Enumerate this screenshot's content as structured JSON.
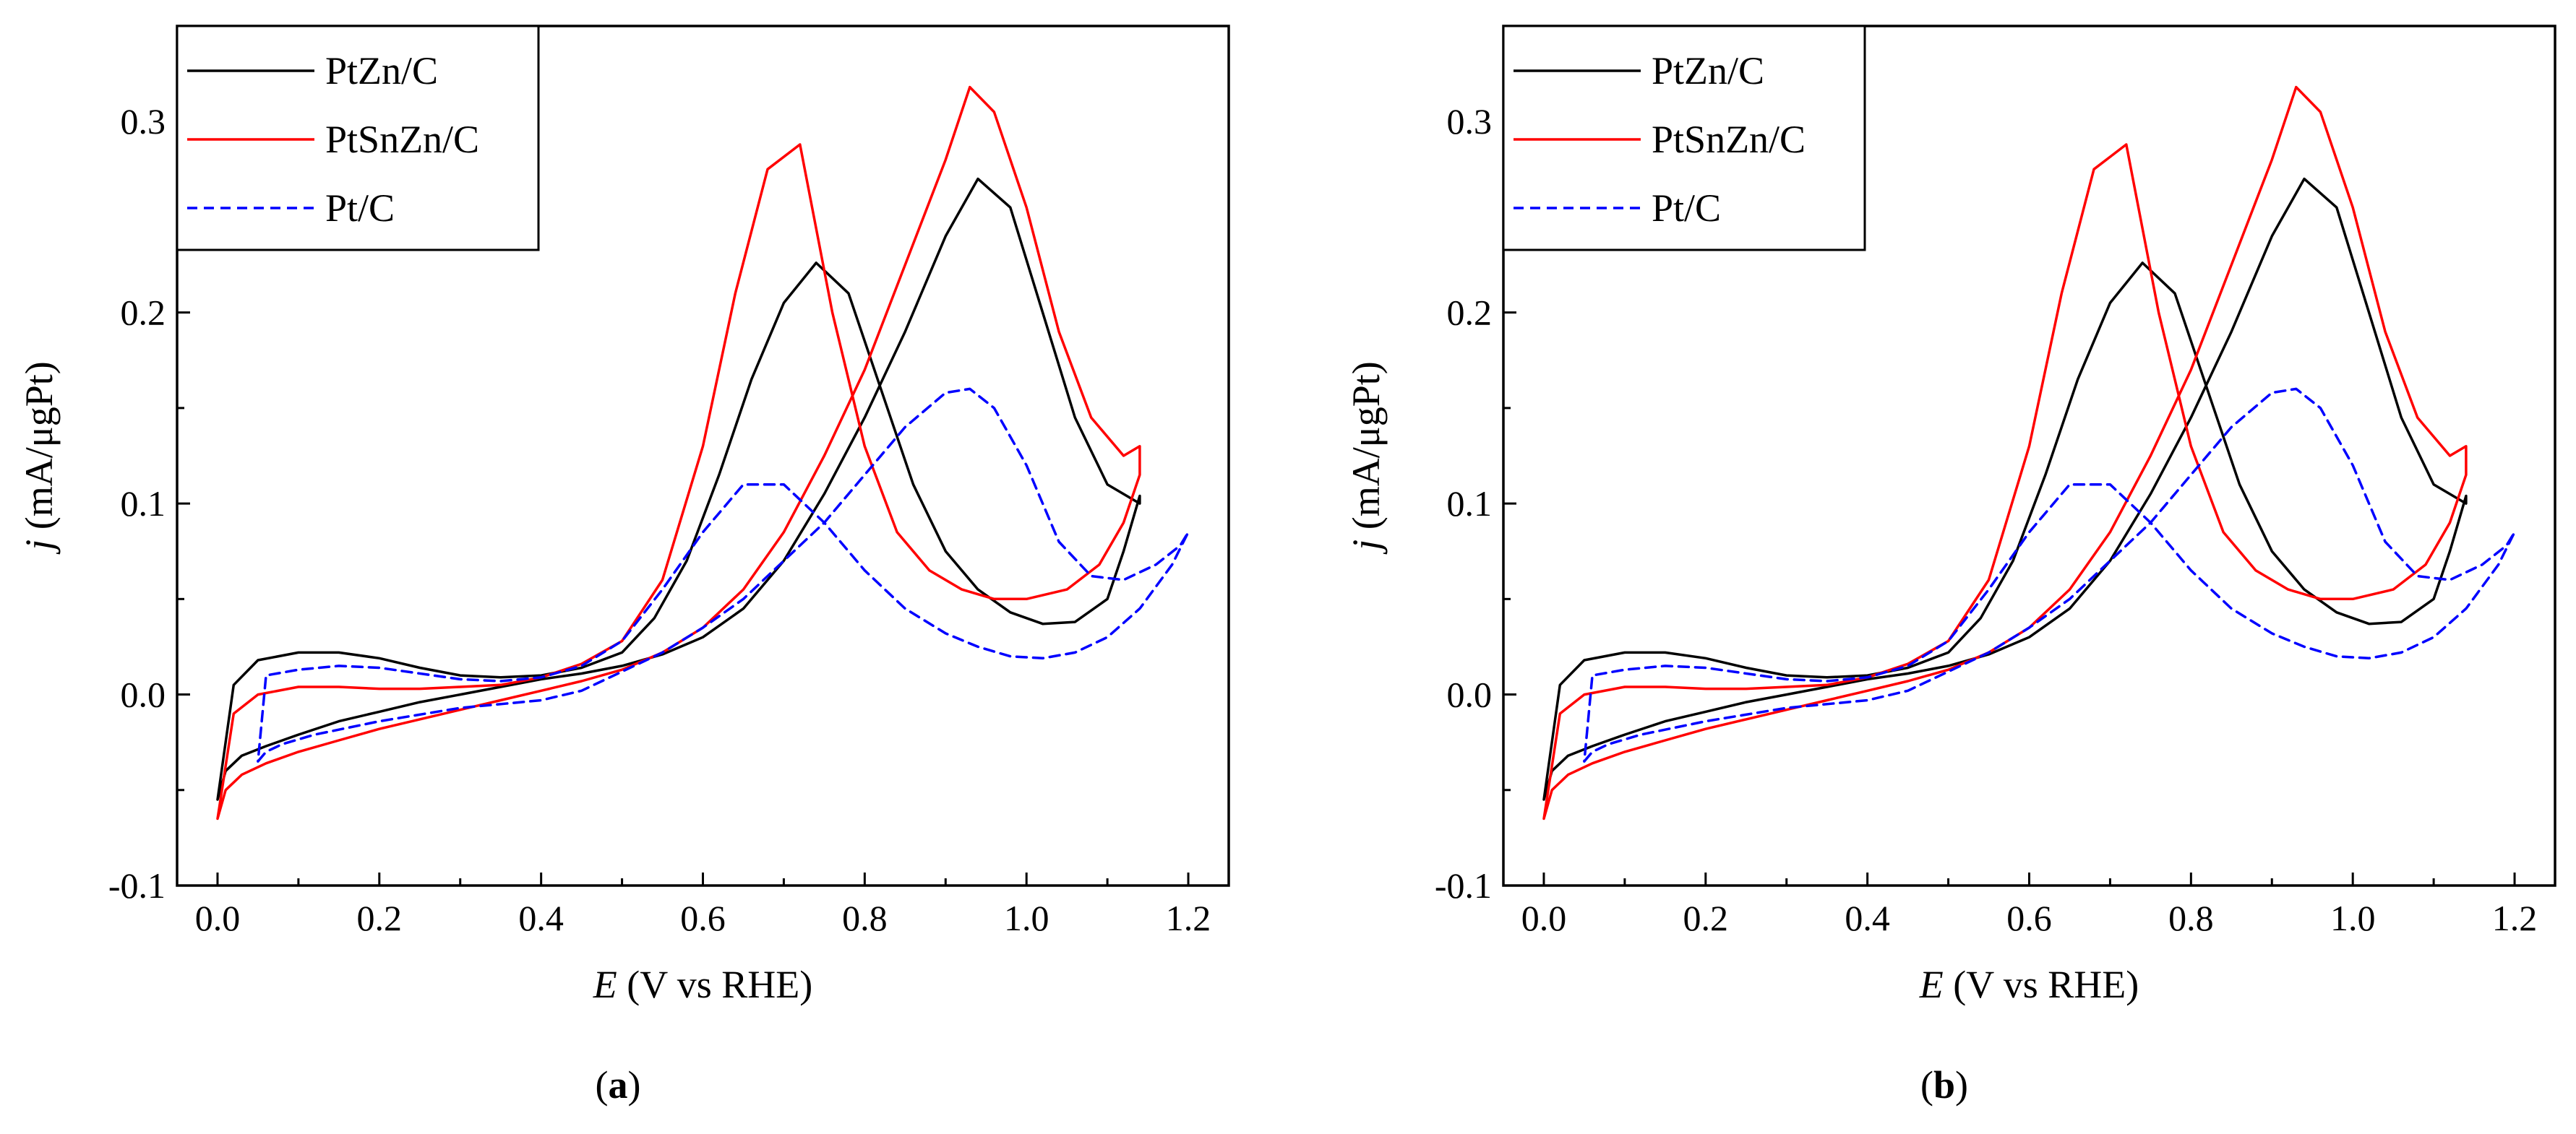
{
  "panels": [
    {
      "caption_open": "(",
      "caption_letter": "a",
      "caption_close": ")"
    },
    {
      "caption_open": "(",
      "caption_letter": "b",
      "caption_close": ")"
    }
  ],
  "chart_data": [
    {
      "type": "line",
      "panel": "a",
      "xlabel_var": "E",
      "xlabel_rest": " (V vs RHE)",
      "ylabel_var": "j",
      "ylabel_rest": " (mA/μgPt)",
      "xlim": [
        -0.05,
        1.25
      ],
      "ylim": [
        -0.1,
        0.35
      ],
      "xticks": [
        0.0,
        0.2,
        0.4,
        0.6,
        0.8,
        1.0,
        1.2
      ],
      "xtick_labels": [
        "0.0",
        "0.2",
        "0.4",
        "0.6",
        "0.8",
        "1.0",
        "1.2"
      ],
      "yticks": [
        -0.1,
        0.0,
        0.1,
        0.2,
        0.3
      ],
      "ytick_labels": [
        "-0.1",
        "0.0",
        "0.1",
        "0.2",
        "0.3"
      ],
      "legend_position": "top-left",
      "series": [
        {
          "name": "PtZn/C",
          "color": "#000000",
          "dash": "solid",
          "x": [
            0.0,
            0.01,
            0.03,
            0.06,
            0.1,
            0.15,
            0.2,
            0.25,
            0.3,
            0.35,
            0.4,
            0.45,
            0.5,
            0.55,
            0.6,
            0.65,
            0.7,
            0.75,
            0.8,
            0.85,
            0.9,
            0.94,
            0.98,
            1.02,
            1.06,
            1.1,
            1.14,
            1.14,
            1.12,
            1.1,
            1.06,
            1.02,
            0.98,
            0.94,
            0.9,
            0.86,
            0.82,
            0.78,
            0.74,
            0.7,
            0.66,
            0.62,
            0.58,
            0.54,
            0.5,
            0.45,
            0.4,
            0.35,
            0.3,
            0.25,
            0.2,
            0.15,
            0.1,
            0.05,
            0.02,
            0.0
          ],
          "y": [
            -0.055,
            -0.04,
            -0.032,
            -0.027,
            -0.021,
            -0.014,
            -0.009,
            -0.004,
            0.0,
            0.004,
            0.008,
            0.011,
            0.015,
            0.021,
            0.03,
            0.045,
            0.07,
            0.105,
            0.145,
            0.19,
            0.24,
            0.27,
            0.255,
            0.2,
            0.145,
            0.11,
            0.1,
            0.104,
            0.075,
            0.05,
            0.038,
            0.037,
            0.043,
            0.055,
            0.075,
            0.11,
            0.16,
            0.21,
            0.226,
            0.205,
            0.165,
            0.115,
            0.07,
            0.04,
            0.022,
            0.014,
            0.01,
            0.009,
            0.01,
            0.014,
            0.019,
            0.022,
            0.022,
            0.018,
            0.005,
            -0.055
          ]
        },
        {
          "name": "PtSnZn/C",
          "color": "#ff0000",
          "dash": "solid",
          "x": [
            0.0,
            0.01,
            0.03,
            0.06,
            0.1,
            0.15,
            0.2,
            0.25,
            0.3,
            0.35,
            0.4,
            0.45,
            0.5,
            0.55,
            0.6,
            0.65,
            0.7,
            0.75,
            0.8,
            0.85,
            0.9,
            0.93,
            0.96,
            1.0,
            1.04,
            1.08,
            1.12,
            1.14,
            1.14,
            1.12,
            1.09,
            1.05,
            1.0,
            0.96,
            0.92,
            0.88,
            0.84,
            0.8,
            0.76,
            0.72,
            0.68,
            0.64,
            0.6,
            0.55,
            0.5,
            0.45,
            0.4,
            0.35,
            0.3,
            0.25,
            0.2,
            0.15,
            0.1,
            0.05,
            0.02,
            0.0
          ],
          "y": [
            -0.065,
            -0.05,
            -0.042,
            -0.036,
            -0.03,
            -0.024,
            -0.018,
            -0.013,
            -0.008,
            -0.003,
            0.002,
            0.007,
            0.013,
            0.022,
            0.035,
            0.055,
            0.085,
            0.125,
            0.17,
            0.225,
            0.28,
            0.318,
            0.305,
            0.255,
            0.19,
            0.145,
            0.125,
            0.13,
            0.115,
            0.09,
            0.068,
            0.055,
            0.05,
            0.05,
            0.055,
            0.065,
            0.085,
            0.13,
            0.2,
            0.288,
            0.275,
            0.21,
            0.13,
            0.06,
            0.028,
            0.016,
            0.009,
            0.005,
            0.004,
            0.003,
            0.003,
            0.004,
            0.004,
            0.0,
            -0.01,
            -0.065
          ]
        },
        {
          "name": "Pt/C",
          "color": "#0000ff",
          "dash": "dashed",
          "x": [
            0.05,
            0.06,
            0.08,
            0.12,
            0.2,
            0.3,
            0.4,
            0.45,
            0.5,
            0.55,
            0.6,
            0.65,
            0.7,
            0.75,
            0.8,
            0.85,
            0.9,
            0.93,
            0.96,
            1.0,
            1.04,
            1.08,
            1.12,
            1.16,
            1.19,
            1.2,
            1.18,
            1.14,
            1.1,
            1.06,
            1.02,
            0.98,
            0.94,
            0.9,
            0.85,
            0.8,
            0.75,
            0.7,
            0.65,
            0.6,
            0.55,
            0.5,
            0.45,
            0.4,
            0.35,
            0.3,
            0.2,
            0.15,
            0.1,
            0.06,
            0.05
          ],
          "y": [
            -0.035,
            -0.03,
            -0.026,
            -0.021,
            -0.014,
            -0.007,
            -0.003,
            0.002,
            0.012,
            0.022,
            0.035,
            0.05,
            0.07,
            0.09,
            0.115,
            0.14,
            0.158,
            0.16,
            0.15,
            0.12,
            0.08,
            0.062,
            0.06,
            0.068,
            0.078,
            0.085,
            0.068,
            0.045,
            0.03,
            0.022,
            0.019,
            0.02,
            0.025,
            0.032,
            0.045,
            0.065,
            0.09,
            0.11,
            0.11,
            0.085,
            0.055,
            0.028,
            0.015,
            0.009,
            0.007,
            0.008,
            0.014,
            0.015,
            0.013,
            0.01,
            -0.035
          ]
        }
      ]
    },
    {
      "type": "line",
      "panel": "b",
      "xlabel_var": "E",
      "xlabel_rest": " (V vs RHE)",
      "ylabel_var": "j",
      "ylabel_rest": " (mA/μgPt)",
      "xlim": [
        -0.05,
        1.25
      ],
      "ylim": [
        -0.1,
        0.35
      ],
      "xticks": [
        0.0,
        0.2,
        0.4,
        0.6,
        0.8,
        1.0,
        1.2
      ],
      "xtick_labels": [
        "0.0",
        "0.2",
        "0.4",
        "0.6",
        "0.8",
        "1.0",
        "1.2"
      ],
      "yticks": [
        -0.1,
        0.0,
        0.1,
        0.2,
        0.3
      ],
      "ytick_labels": [
        "-0.1",
        "0.0",
        "0.1",
        "0.2",
        "0.3"
      ],
      "legend_position": "top-left",
      "series": [
        {
          "name": "PtZn/C",
          "color": "#000000",
          "dash": "solid",
          "x": [
            0.0,
            0.01,
            0.03,
            0.06,
            0.1,
            0.15,
            0.2,
            0.25,
            0.3,
            0.35,
            0.4,
            0.45,
            0.5,
            0.55,
            0.6,
            0.65,
            0.7,
            0.75,
            0.8,
            0.85,
            0.9,
            0.94,
            0.98,
            1.02,
            1.06,
            1.1,
            1.14,
            1.14,
            1.12,
            1.1,
            1.06,
            1.02,
            0.98,
            0.94,
            0.9,
            0.86,
            0.82,
            0.78,
            0.74,
            0.7,
            0.66,
            0.62,
            0.58,
            0.54,
            0.5,
            0.45,
            0.4,
            0.35,
            0.3,
            0.25,
            0.2,
            0.15,
            0.1,
            0.05,
            0.02,
            0.0
          ],
          "y": [
            -0.055,
            -0.04,
            -0.032,
            -0.027,
            -0.021,
            -0.014,
            -0.009,
            -0.004,
            0.0,
            0.004,
            0.008,
            0.011,
            0.015,
            0.021,
            0.03,
            0.045,
            0.07,
            0.105,
            0.145,
            0.19,
            0.24,
            0.27,
            0.255,
            0.2,
            0.145,
            0.11,
            0.1,
            0.104,
            0.075,
            0.05,
            0.038,
            0.037,
            0.043,
            0.055,
            0.075,
            0.11,
            0.16,
            0.21,
            0.226,
            0.205,
            0.165,
            0.115,
            0.07,
            0.04,
            0.022,
            0.014,
            0.01,
            0.009,
            0.01,
            0.014,
            0.019,
            0.022,
            0.022,
            0.018,
            0.005,
            -0.055
          ]
        },
        {
          "name": "PtSnZn/C",
          "color": "#ff0000",
          "dash": "solid",
          "x": [
            0.0,
            0.01,
            0.03,
            0.06,
            0.1,
            0.15,
            0.2,
            0.25,
            0.3,
            0.35,
            0.4,
            0.45,
            0.5,
            0.55,
            0.6,
            0.65,
            0.7,
            0.75,
            0.8,
            0.85,
            0.9,
            0.93,
            0.96,
            1.0,
            1.04,
            1.08,
            1.12,
            1.14,
            1.14,
            1.12,
            1.09,
            1.05,
            1.0,
            0.96,
            0.92,
            0.88,
            0.84,
            0.8,
            0.76,
            0.72,
            0.68,
            0.64,
            0.6,
            0.55,
            0.5,
            0.45,
            0.4,
            0.35,
            0.3,
            0.25,
            0.2,
            0.15,
            0.1,
            0.05,
            0.02,
            0.0
          ],
          "y": [
            -0.065,
            -0.05,
            -0.042,
            -0.036,
            -0.03,
            -0.024,
            -0.018,
            -0.013,
            -0.008,
            -0.003,
            0.002,
            0.007,
            0.013,
            0.022,
            0.035,
            0.055,
            0.085,
            0.125,
            0.17,
            0.225,
            0.28,
            0.318,
            0.305,
            0.255,
            0.19,
            0.145,
            0.125,
            0.13,
            0.115,
            0.09,
            0.068,
            0.055,
            0.05,
            0.05,
            0.055,
            0.065,
            0.085,
            0.13,
            0.2,
            0.288,
            0.275,
            0.21,
            0.13,
            0.06,
            0.028,
            0.016,
            0.009,
            0.005,
            0.004,
            0.003,
            0.003,
            0.004,
            0.004,
            0.0,
            -0.01,
            -0.065
          ]
        },
        {
          "name": "Pt/C",
          "color": "#0000ff",
          "dash": "dashed",
          "x": [
            0.05,
            0.06,
            0.08,
            0.12,
            0.2,
            0.3,
            0.4,
            0.45,
            0.5,
            0.55,
            0.6,
            0.65,
            0.7,
            0.75,
            0.8,
            0.85,
            0.9,
            0.93,
            0.96,
            1.0,
            1.04,
            1.08,
            1.12,
            1.16,
            1.19,
            1.2,
            1.18,
            1.14,
            1.1,
            1.06,
            1.02,
            0.98,
            0.94,
            0.9,
            0.85,
            0.8,
            0.75,
            0.7,
            0.65,
            0.6,
            0.55,
            0.5,
            0.45,
            0.4,
            0.35,
            0.3,
            0.2,
            0.15,
            0.1,
            0.06,
            0.05
          ],
          "y": [
            -0.035,
            -0.03,
            -0.026,
            -0.021,
            -0.014,
            -0.007,
            -0.003,
            0.002,
            0.012,
            0.022,
            0.035,
            0.05,
            0.07,
            0.09,
            0.115,
            0.14,
            0.158,
            0.16,
            0.15,
            0.12,
            0.08,
            0.062,
            0.06,
            0.068,
            0.078,
            0.085,
            0.068,
            0.045,
            0.03,
            0.022,
            0.019,
            0.02,
            0.025,
            0.032,
            0.045,
            0.065,
            0.09,
            0.11,
            0.11,
            0.085,
            0.055,
            0.028,
            0.015,
            0.009,
            0.007,
            0.008,
            0.014,
            0.015,
            0.013,
            0.01,
            -0.035
          ]
        }
      ]
    }
  ]
}
